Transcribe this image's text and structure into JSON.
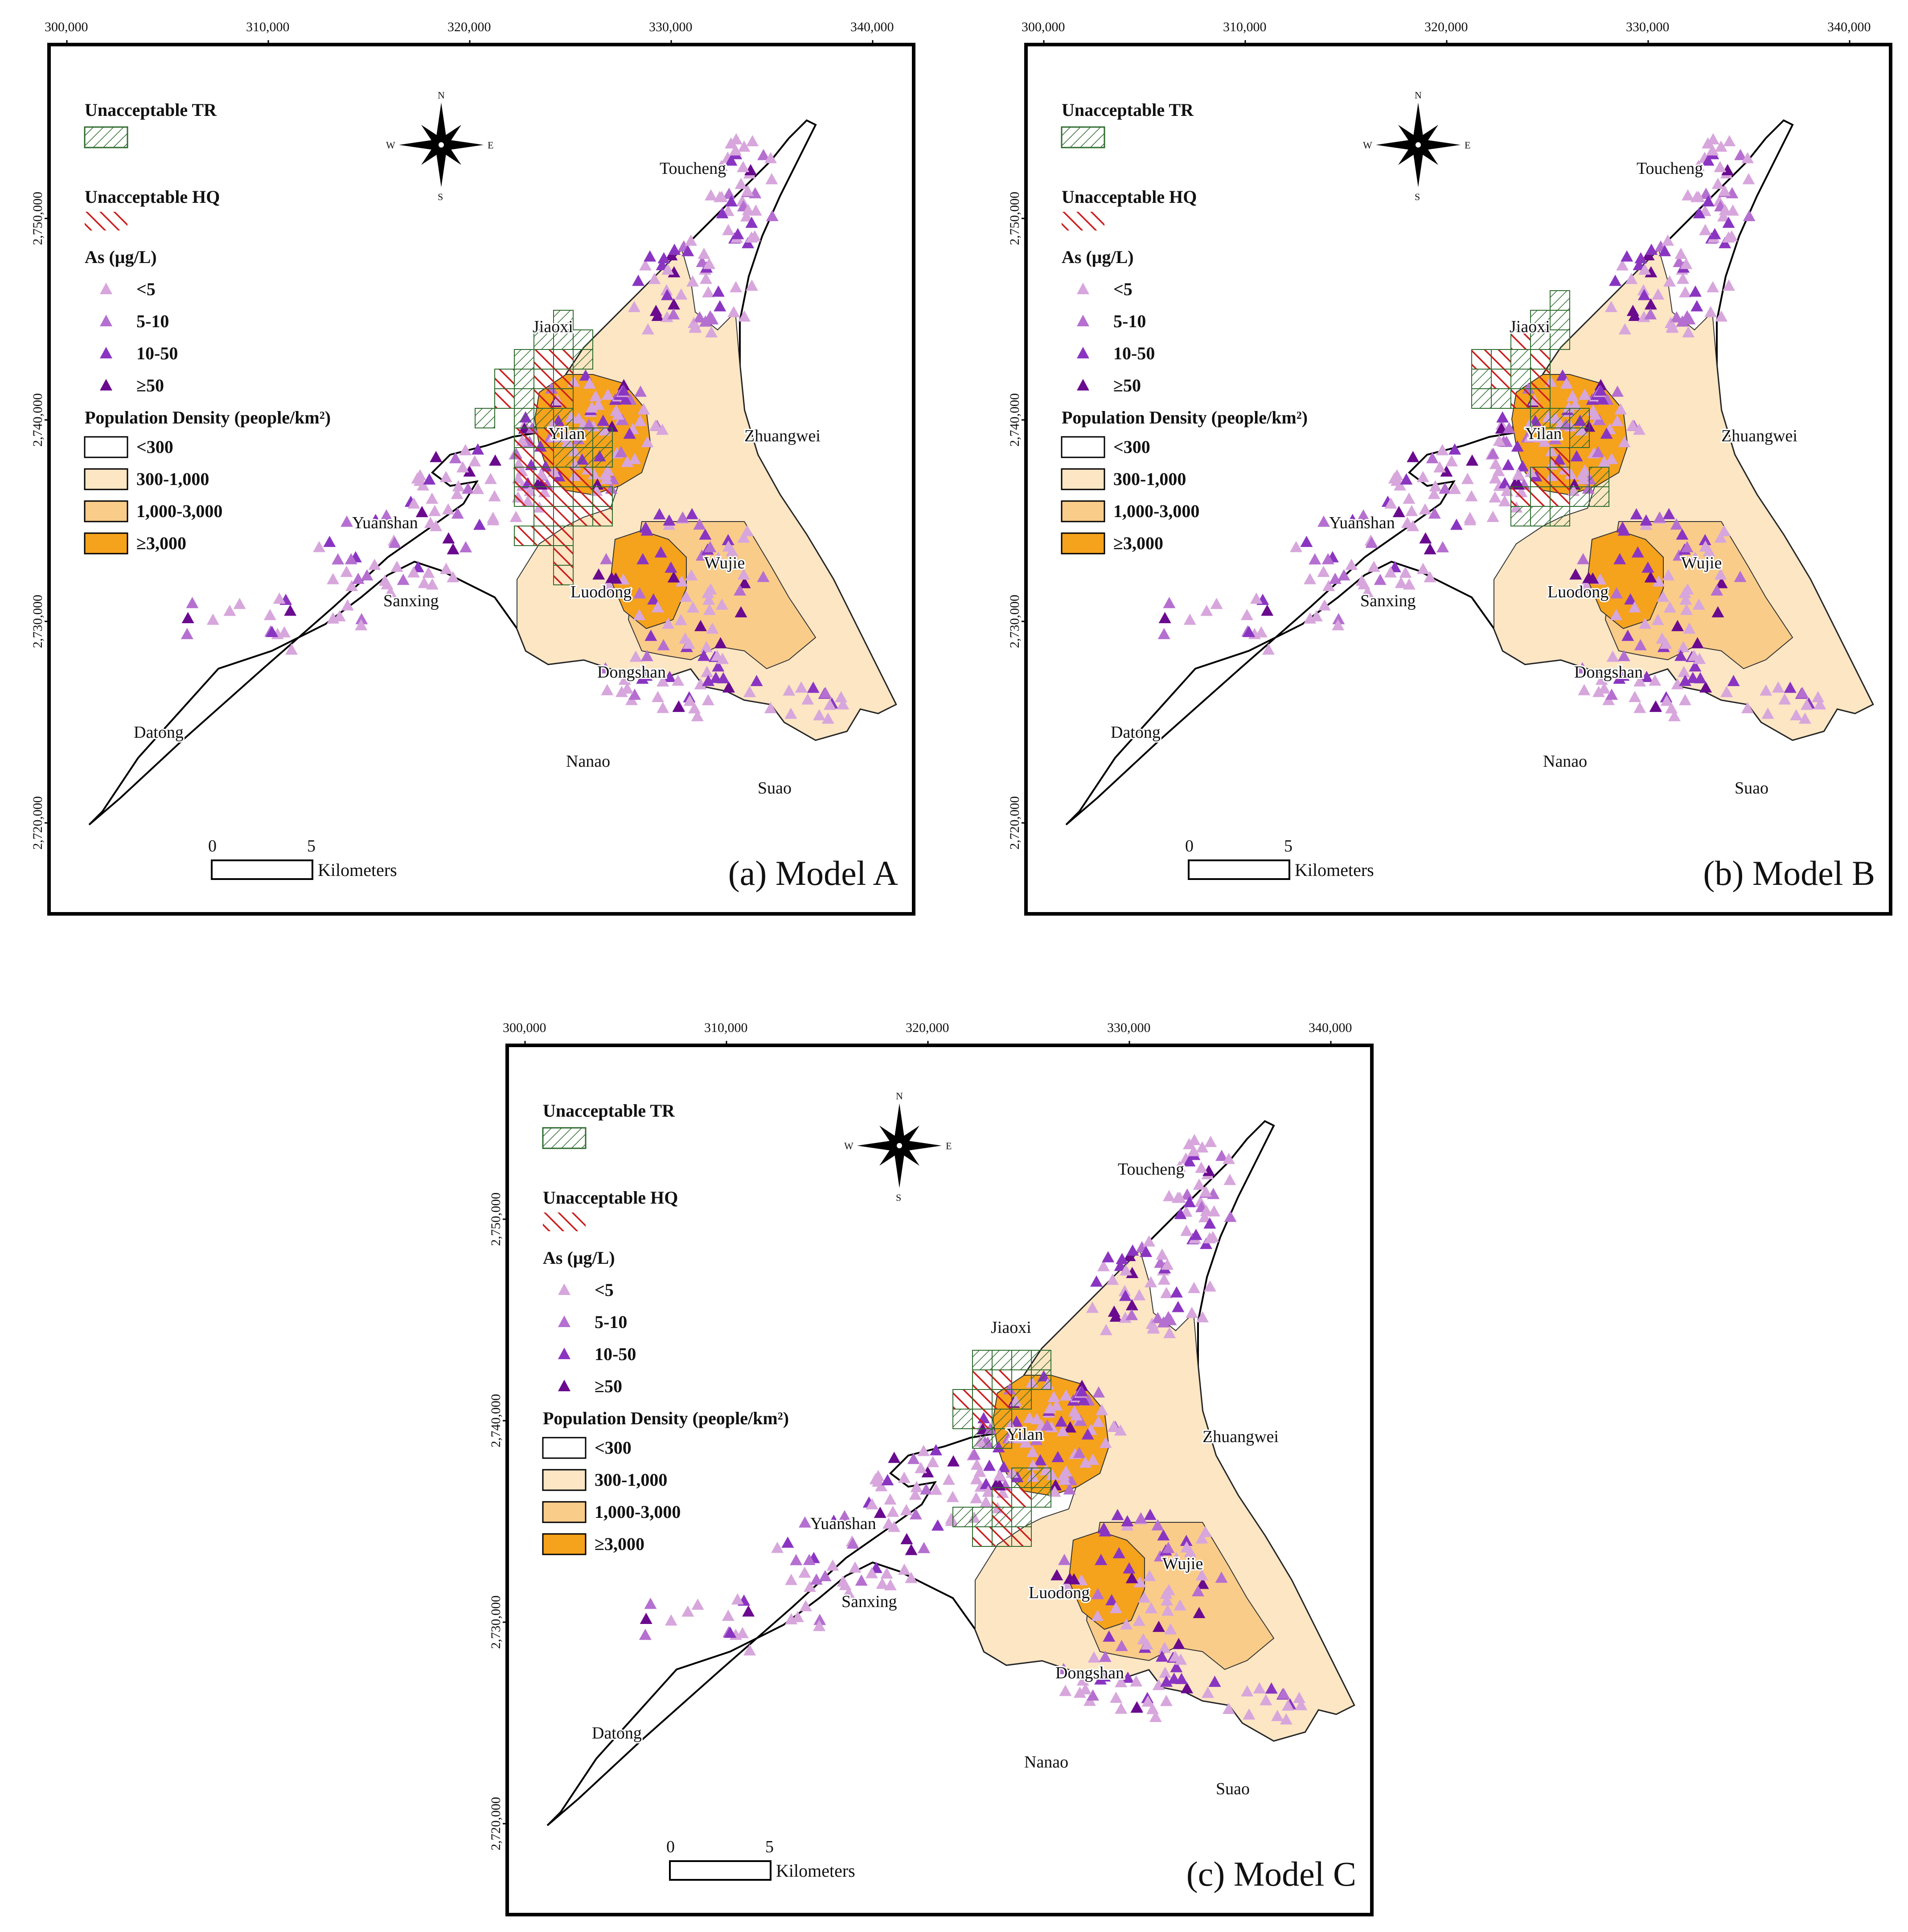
{
  "figure": {
    "x_ticks": [
      "300,000",
      "310,000",
      "320,000",
      "330,000",
      "340,000"
    ],
    "y_ticks": [
      "2,750,000",
      "2,740,000",
      "2,730,000",
      "2,720,000"
    ],
    "compass": {
      "n": "N",
      "s": "S",
      "e": "E",
      "w": "W"
    },
    "legend": {
      "tr_title": "Unacceptable TR",
      "hq_title": "Unacceptable HQ",
      "as_title": "As (μg/L)",
      "as_classes": [
        {
          "label": "<5",
          "color": "#d7a6dc"
        },
        {
          "label": "5-10",
          "color": "#b56fd0"
        },
        {
          "label": "10-50",
          "color": "#8a35c2"
        },
        {
          "label": "≥50",
          "color": "#6a0a8e"
        }
      ],
      "pop_title": "Population Density (people/km²)",
      "pop_classes": [
        {
          "label": "<300",
          "color": "#ffffff"
        },
        {
          "label": "300-1,000",
          "color": "#fde6c4"
        },
        {
          "label": "1,000-3,000",
          "color": "#f9cc8a"
        },
        {
          "label": "≥3,000",
          "color": "#f5a21c"
        }
      ]
    },
    "places": [
      "Toucheng",
      "Jiaoxi",
      "Zhuangwei",
      "Yilan",
      "Yuanshan",
      "Wujie",
      "Luodong",
      "Sanxing",
      "Dongshan",
      "Datong",
      "Nanao",
      "Suao"
    ],
    "scalebar": {
      "zero": "0",
      "five": "5",
      "unit": "Kilometers"
    },
    "colors": {
      "tr_hatch": "#2e6b2e",
      "hq_hatch": "#cc1f1f",
      "border": "#000000"
    },
    "panels": [
      {
        "id": "a",
        "caption": "(a) Model A"
      },
      {
        "id": "b",
        "caption": "(b) Model B"
      },
      {
        "id": "c",
        "caption": "(c) Model C"
      }
    ]
  }
}
